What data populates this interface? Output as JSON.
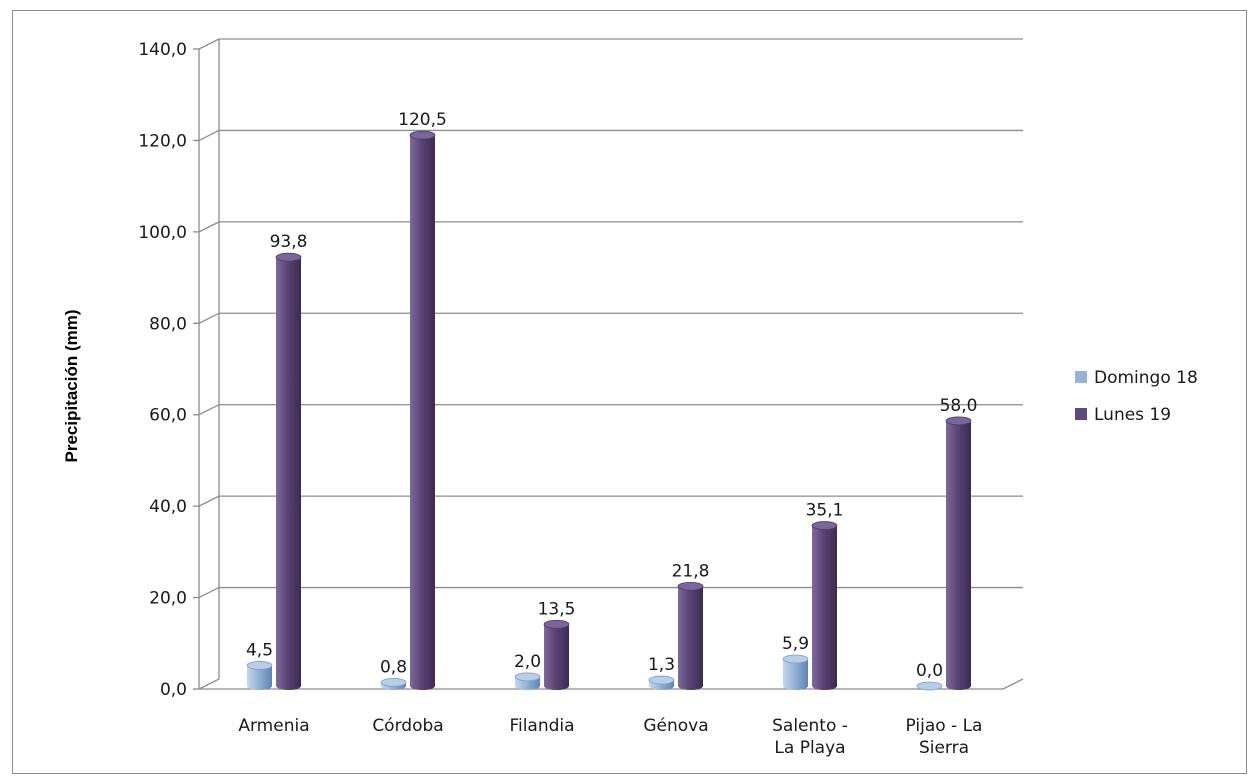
{
  "chart_data": {
    "type": "bar",
    "title": "",
    "xlabel": "",
    "ylabel": "Precipitación (mm)",
    "ylim": [
      0,
      140
    ],
    "yticks": [
      "0,0",
      "20,0",
      "40,0",
      "60,0",
      "80,0",
      "100,0",
      "120,0",
      "140,0"
    ],
    "grid": true,
    "legend_position": "right",
    "categories": [
      [
        "Armenia"
      ],
      [
        "Córdoba"
      ],
      [
        "Filandia"
      ],
      [
        "Génova"
      ],
      [
        "Salento -",
        "La Playa"
      ],
      [
        "Pijao - La",
        "Sierra"
      ]
    ],
    "series": [
      {
        "name": "Domingo 18",
        "color": "#95b3d7",
        "values": [
          4.5,
          0.8,
          2.0,
          1.3,
          5.9,
          0.0
        ],
        "labels": [
          "4,5",
          "0,8",
          "2,0",
          "1,3",
          "5,9",
          "0,0"
        ]
      },
      {
        "name": "Lunes 19",
        "color": "#604a7b",
        "values": [
          93.8,
          120.5,
          13.5,
          21.8,
          35.1,
          58.0
        ],
        "labels": [
          "93,8",
          "120,5",
          "13,5",
          "21,8",
          "35,1",
          "58,0"
        ]
      }
    ]
  }
}
